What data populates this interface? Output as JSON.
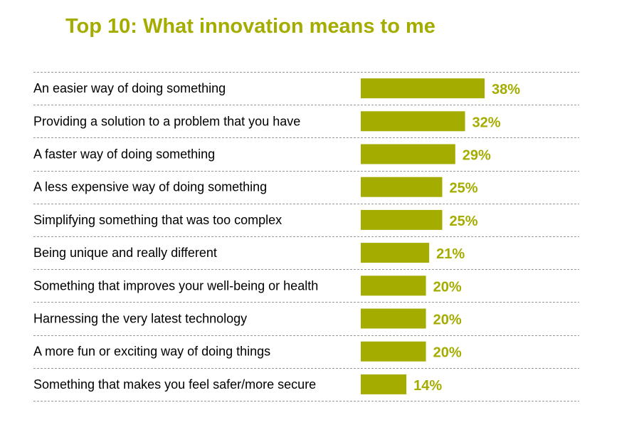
{
  "chart_data": {
    "type": "bar",
    "orientation": "horizontal",
    "title": "Top 10: What innovation means to me",
    "categories": [
      "An easier way of doing something",
      "Providing a solution to a problem that you have",
      "A faster way of doing something",
      "A less expensive way of doing something",
      "Simplifying something that was too complex",
      "Being unique and really different",
      "Something that improves your well-being or health",
      "Harnessing the very latest technology",
      "A more fun or exciting way of doing things",
      "Something that makes you feel safer/more secure"
    ],
    "values": [
      38,
      32,
      29,
      25,
      25,
      21,
      20,
      20,
      20,
      14
    ],
    "value_labels": [
      "38%",
      "32%",
      "29%",
      "25%",
      "25%",
      "21%",
      "20%",
      "20%",
      "20%",
      "14%"
    ],
    "unit": "%",
    "grid": false,
    "legend": "none",
    "bar_color": "#a5ac00",
    "value_label_color": "#a5ac00",
    "title_color": "#a5ac00"
  }
}
